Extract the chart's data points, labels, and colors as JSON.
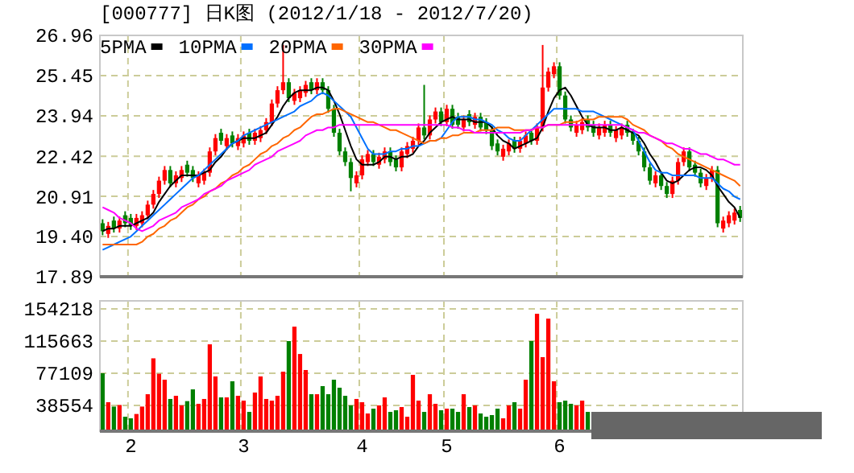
{
  "chart_data": [
    {
      "type": "candlestick",
      "title": "[000777] 日K图 (2012/1/18 - 2012/7/20)",
      "categories": [
        null,
        null,
        null,
        null,
        null,
        "2",
        null,
        null,
        null,
        null,
        null,
        null,
        null,
        null,
        null,
        null,
        null,
        null,
        null,
        null,
        null,
        null,
        null,
        null,
        null,
        "3",
        null,
        null,
        null,
        null,
        null,
        null,
        null,
        null,
        null,
        null,
        null,
        null,
        null,
        null,
        null,
        null,
        null,
        null,
        null,
        null,
        "4",
        null,
        null,
        null,
        null,
        null,
        null,
        null,
        null,
        null,
        null,
        null,
        null,
        null,
        null,
        "5",
        null,
        null,
        null,
        null,
        null,
        null,
        null,
        null,
        null,
        null,
        null,
        null,
        null,
        null,
        null,
        null,
        null,
        null,
        null,
        "6",
        null,
        null,
        null,
        null,
        null,
        null,
        null,
        null,
        null,
        null,
        null,
        null,
        null,
        null,
        null,
        null,
        null,
        null,
        null,
        null,
        null,
        null,
        null,
        null,
        null,
        null,
        null,
        null,
        null,
        null,
        null,
        null
      ],
      "ohlc": [
        [
          19.9,
          20.05,
          19.45,
          19.6
        ],
        [
          19.5,
          19.95,
          19.35,
          19.8
        ],
        [
          20.0,
          20.15,
          19.55,
          19.7
        ],
        [
          19.7,
          20.15,
          19.55,
          20.0
        ],
        [
          20.2,
          20.35,
          19.75,
          19.9
        ],
        [
          20.1,
          20.25,
          19.65,
          19.8
        ],
        [
          19.8,
          20.25,
          19.65,
          20.1
        ],
        [
          19.9,
          20.35,
          19.75,
          20.2
        ],
        [
          20.2,
          20.75,
          20.05,
          20.6
        ],
        [
          20.6,
          21.15,
          20.45,
          21.0
        ],
        [
          21.0,
          21.65,
          20.85,
          21.5
        ],
        [
          21.5,
          22.05,
          21.35,
          21.9
        ],
        [
          21.9,
          22.05,
          21.25,
          21.4
        ],
        [
          21.4,
          21.85,
          21.25,
          21.7
        ],
        [
          21.6,
          22.05,
          21.45,
          21.9
        ],
        [
          22.1,
          22.25,
          21.65,
          21.8
        ],
        [
          21.9,
          22.05,
          21.45,
          21.6
        ],
        [
          21.4,
          21.85,
          21.25,
          21.7
        ],
        [
          21.5,
          21.95,
          21.35,
          21.8
        ],
        [
          21.8,
          22.75,
          21.65,
          22.6
        ],
        [
          22.6,
          23.25,
          22.45,
          23.1
        ],
        [
          23.3,
          23.45,
          22.85,
          23.0
        ],
        [
          22.8,
          23.25,
          22.65,
          23.1
        ],
        [
          23.2,
          23.35,
          22.75,
          22.9
        ],
        [
          22.8,
          23.25,
          22.65,
          23.1
        ],
        [
          22.9,
          23.35,
          22.75,
          23.2
        ],
        [
          23.3,
          23.45,
          22.85,
          23.0
        ],
        [
          23.0,
          23.45,
          22.85,
          23.3
        ],
        [
          23.1,
          23.55,
          22.95,
          23.4
        ],
        [
          23.4,
          23.85,
          23.25,
          23.7
        ],
        [
          23.7,
          24.55,
          23.55,
          24.4
        ],
        [
          24.4,
          25.05,
          24.25,
          24.9
        ],
        [
          24.9,
          26.6,
          24.75,
          25.2
        ],
        [
          25.2,
          25.35,
          24.45,
          24.6
        ],
        [
          24.5,
          24.95,
          24.35,
          24.8
        ],
        [
          24.6,
          25.05,
          24.45,
          24.9
        ],
        [
          24.8,
          25.25,
          24.65,
          25.1
        ],
        [
          25.2,
          25.35,
          24.75,
          24.9
        ],
        [
          24.9,
          25.35,
          24.75,
          25.2
        ],
        [
          25.2,
          25.35,
          24.75,
          24.9
        ],
        [
          24.9,
          25.05,
          24.05,
          24.2
        ],
        [
          24.2,
          24.35,
          23.15,
          23.3
        ],
        [
          23.3,
          23.45,
          22.45,
          22.6
        ],
        [
          22.6,
          22.75,
          22.05,
          22.2
        ],
        [
          22.2,
          22.35,
          21.1,
          21.6
        ],
        [
          21.4,
          21.85,
          21.25,
          21.7
        ],
        [
          21.7,
          22.45,
          21.55,
          22.3
        ],
        [
          22.2,
          22.65,
          22.05,
          22.5
        ],
        [
          22.5,
          22.65,
          22.05,
          22.2
        ],
        [
          22.1,
          22.55,
          21.95,
          22.4
        ],
        [
          22.3,
          22.75,
          22.15,
          22.6
        ],
        [
          22.6,
          22.75,
          22.05,
          22.2
        ],
        [
          22.3,
          22.45,
          21.85,
          22.0
        ],
        [
          22.0,
          22.75,
          21.85,
          22.6
        ],
        [
          22.5,
          22.95,
          22.35,
          22.8
        ],
        [
          22.7,
          23.15,
          22.55,
          23.0
        ],
        [
          23.0,
          23.65,
          22.85,
          23.5
        ],
        [
          23.5,
          25.1,
          23.05,
          23.2
        ],
        [
          23.2,
          23.95,
          23.05,
          23.8
        ],
        [
          23.8,
          24.25,
          23.65,
          24.1
        ],
        [
          24.1,
          24.25,
          23.55,
          23.7
        ],
        [
          23.7,
          24.35,
          23.55,
          24.2
        ],
        [
          24.2,
          24.35,
          23.45,
          23.6
        ],
        [
          23.9,
          24.05,
          23.45,
          23.6
        ],
        [
          23.5,
          23.95,
          23.35,
          23.8
        ],
        [
          24.0,
          24.15,
          23.55,
          23.7
        ],
        [
          23.6,
          24.05,
          23.45,
          23.9
        ],
        [
          23.9,
          24.05,
          23.35,
          23.5
        ],
        [
          23.7,
          23.85,
          23.25,
          23.4
        ],
        [
          23.4,
          23.55,
          22.65,
          22.8
        ],
        [
          22.9,
          23.05,
          22.45,
          22.6
        ],
        [
          22.4,
          22.85,
          22.25,
          22.7
        ],
        [
          22.6,
          23.05,
          22.45,
          22.9
        ],
        [
          23.0,
          23.15,
          22.55,
          22.7
        ],
        [
          22.7,
          23.15,
          22.55,
          23.0
        ],
        [
          22.9,
          23.35,
          22.75,
          23.2
        ],
        [
          23.3,
          23.45,
          22.85,
          23.0
        ],
        [
          23.0,
          23.65,
          22.85,
          23.5
        ],
        [
          23.5,
          26.6,
          23.35,
          25.0
        ],
        [
          25.0,
          25.75,
          24.85,
          25.6
        ],
        [
          25.5,
          25.95,
          25.35,
          25.8
        ],
        [
          25.8,
          25.95,
          24.55,
          24.7
        ],
        [
          24.7,
          24.85,
          23.65,
          23.8
        ],
        [
          23.8,
          23.95,
          23.35,
          23.5
        ],
        [
          23.3,
          23.75,
          23.15,
          23.6
        ],
        [
          23.4,
          23.85,
          23.25,
          23.7
        ],
        [
          23.8,
          23.95,
          23.35,
          23.5
        ],
        [
          23.6,
          23.75,
          23.15,
          23.3
        ],
        [
          23.2,
          23.65,
          23.05,
          23.5
        ],
        [
          23.3,
          23.75,
          23.15,
          23.6
        ],
        [
          23.6,
          23.75,
          23.15,
          23.3
        ],
        [
          23.1,
          23.55,
          22.95,
          23.4
        ],
        [
          23.2,
          23.65,
          23.05,
          23.5
        ],
        [
          23.6,
          23.75,
          23.15,
          23.3
        ],
        [
          23.3,
          23.45,
          22.85,
          23.0
        ],
        [
          23.0,
          23.15,
          22.45,
          22.6
        ],
        [
          22.6,
          22.75,
          21.85,
          22.0
        ],
        [
          22.0,
          22.15,
          21.35,
          21.5
        ],
        [
          21.4,
          21.85,
          21.25,
          21.7
        ],
        [
          21.7,
          21.85,
          21.15,
          21.3
        ],
        [
          21.3,
          21.45,
          20.85,
          21.0
        ],
        [
          21.0,
          21.65,
          20.85,
          21.5
        ],
        [
          21.5,
          22.35,
          21.35,
          22.2
        ],
        [
          22.2,
          22.75,
          22.05,
          22.6
        ],
        [
          22.6,
          22.75,
          21.85,
          22.0
        ],
        [
          22.1,
          22.25,
          21.65,
          21.8
        ],
        [
          21.8,
          21.95,
          21.25,
          21.4
        ],
        [
          21.3,
          21.75,
          21.15,
          21.6
        ],
        [
          21.6,
          22.05,
          21.45,
          21.9
        ],
        [
          21.9,
          22.05,
          19.75,
          19.9
        ],
        [
          19.7,
          20.15,
          19.55,
          20.0
        ],
        [
          19.9,
          20.35,
          19.75,
          20.2
        ],
        [
          20.0,
          20.45,
          19.85,
          20.3
        ],
        [
          20.4,
          20.55,
          19.95,
          20.1
        ]
      ],
      "colors": [
        "#008000",
        "#ff0000",
        "#008000",
        "#ff0000",
        "#008000",
        "#008000",
        "#ff0000",
        "#ff0000",
        "#ff0000",
        "#ff0000",
        "#ff0000",
        "#ff0000",
        "#008000",
        "#ff0000",
        "#ff0000",
        "#008000",
        "#008000",
        "#ff0000",
        "#ff0000",
        "#ff0000",
        "#ff0000",
        "#008000",
        "#ff0000",
        "#008000",
        "#ff0000",
        "#ff0000",
        "#008000",
        "#ff0000",
        "#ff0000",
        "#ff0000",
        "#ff0000",
        "#ff0000",
        "#ff0000",
        "#008000",
        "#ff0000",
        "#ff0000",
        "#ff0000",
        "#008000",
        "#ff0000",
        "#008000",
        "#008000",
        "#008000",
        "#008000",
        "#008000",
        "#008000",
        "#ff0000",
        "#ff0000",
        "#ff0000",
        "#008000",
        "#ff0000",
        "#ff0000",
        "#008000",
        "#008000",
        "#ff0000",
        "#ff0000",
        "#ff0000",
        "#ff0000",
        "#008000",
        "#ff0000",
        "#ff0000",
        "#008000",
        "#ff0000",
        "#008000",
        "#008000",
        "#ff0000",
        "#008000",
        "#ff0000",
        "#008000",
        "#008000",
        "#008000",
        "#008000",
        "#ff0000",
        "#ff0000",
        "#008000",
        "#ff0000",
        "#ff0000",
        "#008000",
        "#ff0000",
        "#ff0000",
        "#ff0000",
        "#ff0000",
        "#008000",
        "#008000",
        "#008000",
        "#ff0000",
        "#ff0000",
        "#008000",
        "#008000",
        "#ff0000",
        "#ff0000",
        "#008000",
        "#ff0000",
        "#ff0000",
        "#008000",
        "#008000",
        "#008000",
        "#008000",
        "#008000",
        "#ff0000",
        "#008000",
        "#008000",
        "#ff0000",
        "#ff0000",
        "#ff0000",
        "#008000",
        "#008000",
        "#008000",
        "#ff0000",
        "#ff0000",
        "#008000",
        "#ff0000",
        "#ff0000",
        "#ff0000",
        "#008000"
      ],
      "series": [
        {
          "name": "5PMA",
          "type": "line",
          "color": "#000000",
          "values": [
            19.6,
            19.7,
            19.7,
            19.8,
            19.8,
            19.8,
            19.9,
            20.0,
            20.1,
            20.3,
            20.7,
            21.0,
            21.3,
            21.5,
            21.7,
            21.7,
            21.7,
            21.7,
            21.8,
            21.9,
            22.2,
            22.4,
            22.7,
            22.9,
            23.0,
            23.1,
            23.1,
            23.1,
            23.2,
            23.3,
            23.6,
            23.9,
            24.3,
            24.6,
            24.8,
            24.9,
            24.9,
            24.9,
            25.0,
            25.0,
            24.9,
            24.5,
            24.0,
            23.4,
            22.8,
            22.3,
            22.1,
            22.1,
            22.1,
            22.2,
            22.4,
            22.4,
            22.3,
            22.4,
            22.4,
            22.5,
            22.8,
            23.0,
            23.3,
            23.5,
            23.7,
            23.8,
            23.9,
            23.8,
            23.8,
            23.8,
            23.7,
            23.7,
            23.7,
            23.5,
            23.2,
            23.0,
            22.9,
            22.7,
            22.8,
            22.9,
            23.0,
            23.1,
            23.5,
            24.1,
            24.6,
            24.9,
            25.0,
            24.7,
            24.3,
            23.9,
            23.6,
            23.5,
            23.5,
            23.5,
            23.4,
            23.4,
            23.5,
            23.4,
            23.3,
            23.2,
            22.9,
            22.5,
            22.2,
            21.8,
            21.5,
            21.4,
            21.5,
            21.7,
            21.9,
            22.0,
            22.0,
            21.9,
            21.7,
            21.3,
            21.0,
            20.7,
            20.5,
            20.1
          ]
        },
        {
          "name": "10PMA",
          "type": "line",
          "color": "#0070ff",
          "values": [
            18.9,
            19.0,
            19.1,
            19.2,
            19.3,
            19.4,
            19.6,
            19.8,
            20.0,
            20.2,
            20.4,
            20.6,
            20.8,
            21.0,
            21.2,
            21.4,
            21.6,
            21.7,
            21.9,
            22.1,
            22.3,
            22.5,
            22.7,
            22.9,
            23.0,
            23.2,
            23.3,
            23.4,
            23.5,
            23.6,
            23.7,
            23.8,
            23.9,
            24.0,
            24.1,
            24.3,
            24.4,
            24.5,
            24.7,
            24.8,
            24.7,
            24.5,
            24.3,
            24.1,
            23.9,
            23.5,
            23.1,
            22.7,
            22.5,
            22.5,
            22.5,
            22.6,
            22.6,
            22.7,
            22.7,
            22.8,
            22.8,
            22.9,
            23.0,
            23.0,
            23.1,
            23.4,
            23.7,
            23.9,
            23.9,
            23.9,
            23.8,
            23.8,
            23.7,
            23.6,
            23.4,
            23.3,
            23.1,
            23.0,
            23.0,
            23.2,
            23.4,
            23.6,
            23.8,
            24.0,
            24.2,
            24.2,
            24.2,
            24.2,
            24.2,
            24.1,
            24.1,
            24.1,
            24.0,
            23.9,
            23.8,
            23.7,
            23.6,
            23.5,
            23.4,
            23.0,
            22.6,
            22.2,
            21.9,
            21.8,
            21.8,
            21.7,
            21.7,
            21.7,
            21.7,
            21.7,
            21.6,
            21.6,
            21.6,
            21.4,
            21.2,
            21.1,
            20.9,
            20.8
          ]
        },
        {
          "name": "20PMA",
          "type": "line",
          "color": "#ff6600",
          "values": [
            19.1,
            19.1,
            19.1,
            19.1,
            19.1,
            19.1,
            19.1,
            19.2,
            19.4,
            19.5,
            19.7,
            19.8,
            20.0,
            20.1,
            20.3,
            20.5,
            20.6,
            20.8,
            20.9,
            21.1,
            21.2,
            21.4,
            21.5,
            21.7,
            21.8,
            22.0,
            22.1,
            22.3,
            22.5,
            22.6,
            22.8,
            22.9,
            23.1,
            23.2,
            23.4,
            23.5,
            23.7,
            23.9,
            24.0,
            24.0,
            24.1,
            24.2,
            24.2,
            24.1,
            24.0,
            23.9,
            23.8,
            23.7,
            23.7,
            23.6,
            23.5,
            23.4,
            23.4,
            23.3,
            23.2,
            23.1,
            23.0,
            22.9,
            23.0,
            23.0,
            23.1,
            23.1,
            23.2,
            23.2,
            23.3,
            23.3,
            23.3,
            23.4,
            23.4,
            23.4,
            23.5,
            23.5,
            23.5,
            23.4,
            23.4,
            23.4,
            23.4,
            23.5,
            23.5,
            23.6,
            23.6,
            23.6,
            23.7,
            23.7,
            23.7,
            23.8,
            23.8,
            23.8,
            23.9,
            23.9,
            23.9,
            23.9,
            23.9,
            23.8,
            23.6,
            23.5,
            23.4,
            23.2,
            23.1,
            23.0,
            22.8,
            22.7,
            22.5,
            22.4,
            22.3,
            22.2,
            22.1,
            22.0,
            21.9,
            21.8,
            21.7,
            21.6,
            21.5,
            21.3
          ]
        },
        {
          "name": "30PMA",
          "type": "line",
          "color": "#ff00ff",
          "values": [
            20.5,
            20.4,
            20.3,
            20.1,
            20.0,
            19.9,
            19.7,
            19.6,
            19.7,
            19.8,
            20.0,
            20.1,
            20.2,
            20.3,
            20.5,
            20.6,
            20.7,
            20.8,
            21.0,
            21.1,
            21.2,
            21.3,
            21.5,
            21.6,
            21.7,
            21.8,
            21.9,
            22.1,
            22.2,
            22.3,
            22.4,
            22.6,
            22.7,
            22.8,
            22.9,
            23.0,
            23.2,
            23.3,
            23.4,
            23.4,
            23.5,
            23.5,
            23.6,
            23.6,
            23.6,
            23.6,
            23.6,
            23.6,
            23.6,
            23.6,
            23.6,
            23.6,
            23.6,
            23.6,
            23.6,
            23.6,
            23.6,
            23.6,
            23.6,
            23.6,
            23.6,
            23.6,
            23.5,
            23.5,
            23.4,
            23.4,
            23.3,
            23.3,
            23.3,
            23.3,
            23.3,
            23.3,
            23.3,
            23.3,
            23.3,
            23.4,
            23.4,
            23.5,
            23.5,
            23.6,
            23.6,
            23.6,
            23.6,
            23.6,
            23.6,
            23.6,
            23.6,
            23.6,
            23.6,
            23.6,
            23.6,
            23.6,
            23.6,
            23.5,
            23.4,
            23.3,
            23.3,
            23.2,
            23.1,
            23.0,
            22.9,
            22.9,
            22.8,
            22.7,
            22.7,
            22.6,
            22.5,
            22.5,
            22.4,
            22.3,
            22.3,
            22.2,
            22.1,
            22.1
          ]
        }
      ],
      "ylim": [
        17.89,
        26.96
      ],
      "yticks": [
        17.89,
        {
          "value": 19.4,
          "label": "19.40"
        },
        20.91,
        22.42,
        23.94,
        25.45,
        26.96
      ],
      "grid": true,
      "legend": "top left",
      "tick_labels": "y"
    },
    {
      "type": "bar",
      "categories": [
        null,
        null,
        null,
        null,
        null,
        "2",
        null,
        null,
        null,
        null,
        null,
        null,
        null,
        null,
        null,
        null,
        null,
        null,
        null,
        null,
        null,
        null,
        null,
        null,
        null,
        "3",
        null,
        null,
        null,
        null,
        null,
        null,
        null,
        null,
        null,
        null,
        null,
        null,
        null,
        null,
        null,
        null,
        null,
        null,
        null,
        null,
        "4",
        null,
        null,
        null,
        null,
        null,
        null,
        null,
        null,
        null,
        null,
        null,
        null,
        null,
        null,
        "5",
        null,
        null,
        null,
        null,
        null,
        null,
        null,
        null,
        null,
        null,
        null,
        null,
        null,
        null,
        null,
        null,
        null,
        null,
        null,
        "6",
        null,
        null,
        null,
        null,
        null,
        null,
        null,
        null,
        null,
        null,
        null,
        null,
        null,
        null,
        null,
        null,
        null,
        null,
        null,
        null,
        null,
        null,
        null,
        null,
        null,
        null,
        null,
        null,
        null,
        null,
        null,
        null
      ],
      "values": [
        77100,
        42400,
        37200,
        39100,
        25000,
        23100,
        28300,
        37200,
        52000,
        95000,
        76500,
        69400,
        46300,
        50100,
        38600,
        43700,
        57800,
        40500,
        46300,
        111800,
        73300,
        48200,
        48200,
        67500,
        50100,
        44300,
        30800,
        54000,
        73300,
        46300,
        44300,
        50100,
        79000,
        115700,
        133000,
        100200,
        81000,
        52000,
        52000,
        61700,
        52000,
        69400,
        59800,
        50100,
        38600,
        46300,
        42400,
        28900,
        34700,
        38600,
        48200,
        30800,
        32800,
        36600,
        25000,
        75200,
        44300,
        30800,
        52000,
        40500,
        32800,
        34700,
        34700,
        30800,
        52000,
        36600,
        38600,
        28900,
        25000,
        27000,
        34700,
        23100,
        38600,
        42400,
        34700,
        69400,
        115700,
        148400,
        96400,
        142600,
        67500,
        42400,
        44300,
        40500,
        38600,
        44300,
        30800,
        null,
        null,
        null,
        null,
        null,
        null,
        null,
        null,
        null,
        null,
        null,
        null,
        null,
        null,
        null,
        null,
        null,
        null,
        null,
        null,
        null,
        null,
        null,
        null,
        null,
        null,
        null
      ],
      "colors": [
        "#008000",
        "#ff0000",
        "#008000",
        "#ff0000",
        "#008000",
        "#008000",
        "#ff0000",
        "#ff0000",
        "#ff0000",
        "#ff0000",
        "#ff0000",
        "#ff0000",
        "#008000",
        "#ff0000",
        "#ff0000",
        "#008000",
        "#008000",
        "#ff0000",
        "#ff0000",
        "#ff0000",
        "#ff0000",
        "#008000",
        "#ff0000",
        "#008000",
        "#ff0000",
        "#ff0000",
        "#008000",
        "#ff0000",
        "#ff0000",
        "#ff0000",
        "#ff0000",
        "#ff0000",
        "#ff0000",
        "#008000",
        "#ff0000",
        "#ff0000",
        "#ff0000",
        "#008000",
        "#ff0000",
        "#008000",
        "#008000",
        "#008000",
        "#008000",
        "#008000",
        "#008000",
        "#ff0000",
        "#ff0000",
        "#ff0000",
        "#008000",
        "#ff0000",
        "#ff0000",
        "#008000",
        "#008000",
        "#ff0000",
        "#ff0000",
        "#ff0000",
        "#ff0000",
        "#008000",
        "#ff0000",
        "#ff0000",
        "#008000",
        "#ff0000",
        "#008000",
        "#008000",
        "#ff0000",
        "#008000",
        "#ff0000",
        "#008000",
        "#008000",
        "#008000",
        "#008000",
        "#ff0000",
        "#ff0000",
        "#008000",
        "#ff0000",
        "#ff0000",
        "#008000",
        "#ff0000",
        "#ff0000",
        "#ff0000",
        "#ff0000",
        "#008000",
        "#008000",
        "#008000",
        "#ff0000",
        "#ff0000",
        "#008000",
        null,
        null,
        null,
        null,
        null,
        null,
        null,
        null,
        null,
        null,
        null,
        null,
        null,
        null,
        null,
        null,
        null,
        null,
        null,
        null,
        null,
        null,
        null,
        null,
        null,
        null,
        null
      ],
      "ylim": [
        7700,
        163900
      ],
      "yticks": [
        38554,
        77109,
        115663,
        154218
      ],
      "grid": true
    }
  ]
}
